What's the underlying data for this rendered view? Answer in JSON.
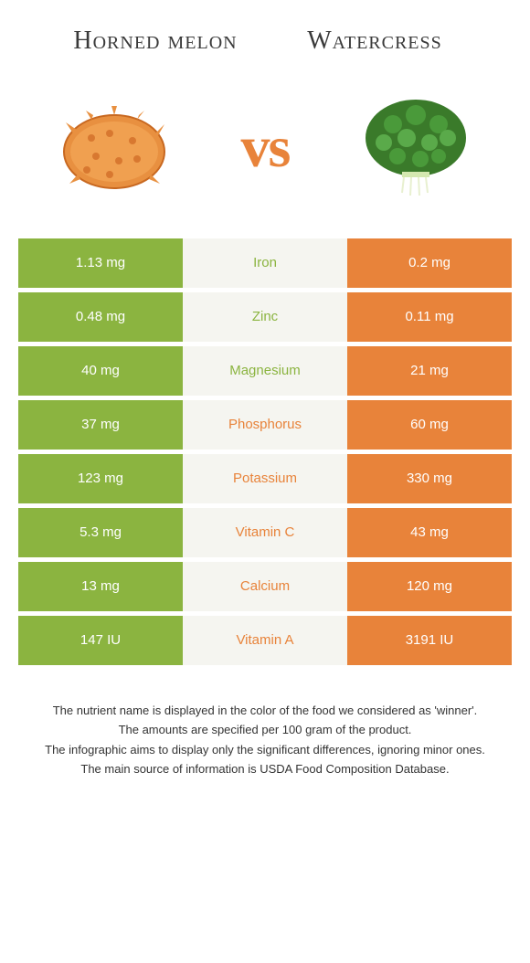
{
  "food_left": {
    "title": "Horned melon",
    "color": "#8bb440"
  },
  "food_right": {
    "title": "Watercress",
    "color": "#e8833a"
  },
  "vs_label": "vs",
  "colors": {
    "left_cell": "#8bb440",
    "right_cell": "#e8833a",
    "mid_cell": "#f5f5f0",
    "vs_text": "#e8833a"
  },
  "nutrients": [
    {
      "name": "Iron",
      "left": "1.13 mg",
      "right": "0.2 mg",
      "winner": "left"
    },
    {
      "name": "Zinc",
      "left": "0.48 mg",
      "right": "0.11 mg",
      "winner": "left"
    },
    {
      "name": "Magnesium",
      "left": "40 mg",
      "right": "21 mg",
      "winner": "left"
    },
    {
      "name": "Phosphorus",
      "left": "37 mg",
      "right": "60 mg",
      "winner": "right"
    },
    {
      "name": "Potassium",
      "left": "123 mg",
      "right": "330 mg",
      "winner": "right"
    },
    {
      "name": "Vitamin C",
      "left": "5.3 mg",
      "right": "43 mg",
      "winner": "right"
    },
    {
      "name": "Calcium",
      "left": "13 mg",
      "right": "120 mg",
      "winner": "right"
    },
    {
      "name": "Vitamin A",
      "left": "147 IU",
      "right": "3191 IU",
      "winner": "right"
    }
  ],
  "footer": {
    "line1": "The nutrient name is displayed in the color of the food we considered as 'winner'.",
    "line2": "The amounts are specified per 100 gram of the product.",
    "line3": "The infographic aims to display only the significant differences, ignoring minor ones.",
    "line4": "The main source of information is USDA Food Composition Database."
  }
}
